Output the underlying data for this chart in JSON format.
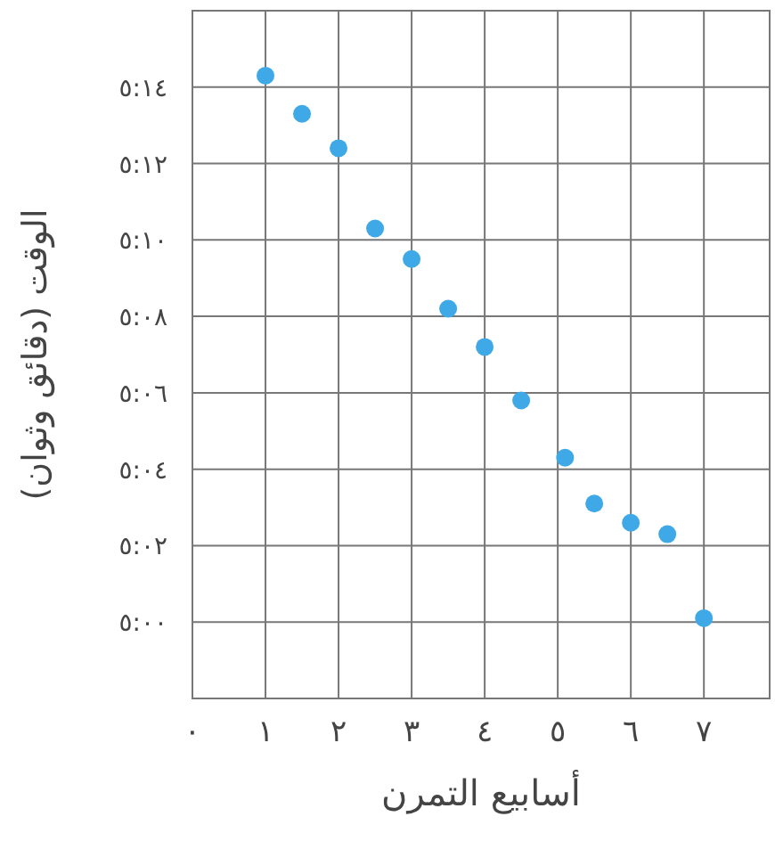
{
  "chart_data": {
    "type": "scatter",
    "xlabel": "أسابيع التمرن",
    "ylabel": "الوقت (دقائق وثوان)",
    "x": [
      1,
      1.5,
      2,
      2.5,
      3,
      3.5,
      4,
      4.5,
      5.1,
      5.5,
      6,
      6.5,
      7
    ],
    "series": [
      {
        "color": "#3fa9e8",
        "values": [
          314.3,
          313.3,
          312.4,
          310.3,
          309.5,
          308.2,
          307.2,
          305.8,
          304.3,
          303.1,
          302.6,
          302.3,
          300.1
        ]
      }
    ],
    "xlim": [
      0,
      7.9
    ],
    "ylim": [
      298,
      316
    ],
    "xticks": [
      {
        "value": 0,
        "label": "٠"
      },
      {
        "value": 1,
        "label": "١"
      },
      {
        "value": 2,
        "label": "٢"
      },
      {
        "value": 3,
        "label": "٣"
      },
      {
        "value": 4,
        "label": "٤"
      },
      {
        "value": 5,
        "label": "٥"
      },
      {
        "value": 6,
        "label": "٦"
      },
      {
        "value": 7,
        "label": "٧"
      }
    ],
    "yticks": [
      {
        "value": 300,
        "label": "٥:٠٠"
      },
      {
        "value": 302,
        "label": "٥:٠٢"
      },
      {
        "value": 304,
        "label": "٥:٠٤"
      },
      {
        "value": 306,
        "label": "٥:٠٦"
      },
      {
        "value": 308,
        "label": "٥:٠٨"
      },
      {
        "value": 310,
        "label": "٥:١٠"
      },
      {
        "value": 312,
        "label": "٥:١٢"
      },
      {
        "value": 314,
        "label": "٥:١٤"
      }
    ],
    "grid": true,
    "marker": "circle"
  }
}
